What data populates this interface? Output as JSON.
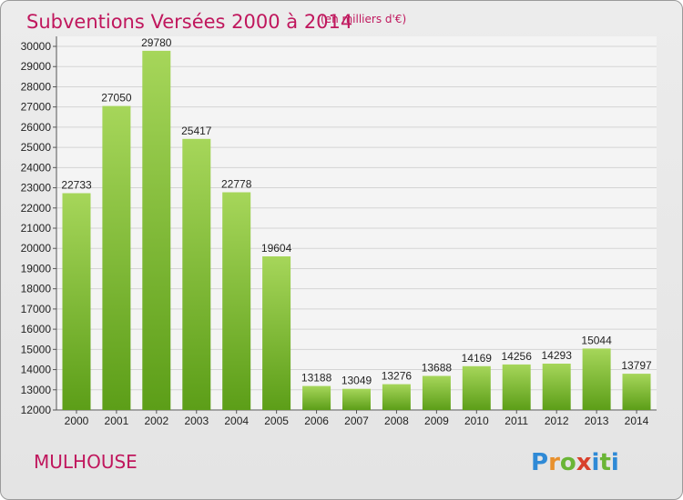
{
  "header": {
    "title": "Subventions Versées 2000 à 2014",
    "unit": "(en milliers d'€)"
  },
  "city": "MULHOUSE",
  "logo": {
    "text": "Proxiti",
    "colors": [
      "#2f8ad6",
      "#e8902c",
      "#6ab536",
      "#d8402c",
      "#2f8ad6",
      "#6ab536",
      "#2f8ad6"
    ]
  },
  "colors": {
    "title": "#c0175d",
    "bar_top": "#a6d65a",
    "bar_bottom": "#5c9e18",
    "plot_bg": "#f4f4f4",
    "grid": "#d4d4d4"
  },
  "chart_data": {
    "type": "bar",
    "title": "Subventions Versées 2000 à 2014",
    "ylabel": "",
    "xlabel": "",
    "ylim": [
      12000,
      30500
    ],
    "ytick_step": 1000,
    "grid": true,
    "categories": [
      "2000",
      "2001",
      "2002",
      "2003",
      "2004",
      "2005",
      "2006",
      "2007",
      "2008",
      "2009",
      "2010",
      "2011",
      "2012",
      "2013",
      "2014"
    ],
    "values": [
      22733,
      27050,
      29780,
      25417,
      22778,
      19604,
      13188,
      13049,
      13276,
      13688,
      14169,
      14256,
      14293,
      15044,
      13797
    ],
    "data_labels": [
      "22733",
      "27050",
      "29780",
      "25417",
      "22778",
      "19604",
      "13188",
      "13049",
      "13276",
      "13688",
      "14169",
      "14256",
      "14293",
      "15044",
      "13797"
    ]
  }
}
